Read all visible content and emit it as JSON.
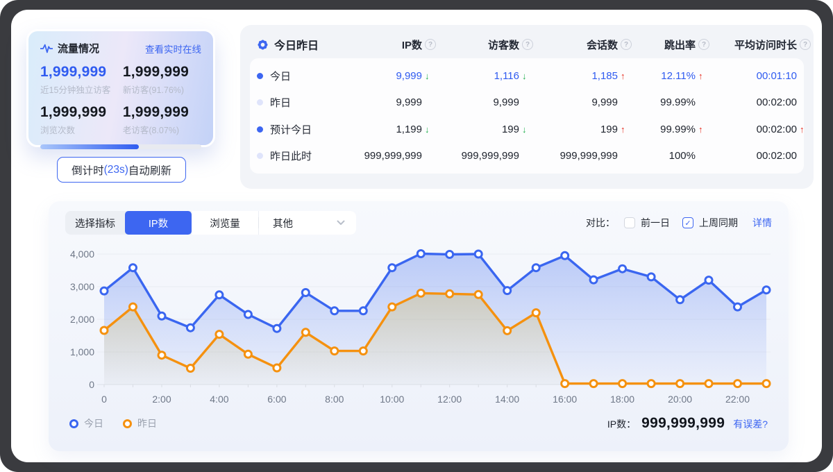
{
  "colors": {
    "accent_blue": "#3d66f1",
    "up_red": "#e5281b",
    "down_green": "#1fae4d",
    "series_today": "#3a66f0",
    "series_yesterday": "#f5910f"
  },
  "traffic_card": {
    "title": "流量情况",
    "link": "查看实时在线",
    "stats": [
      {
        "value": "1,999,999",
        "label": "近15分钟独立访客",
        "highlight": true
      },
      {
        "value": "1,999,999",
        "label": "新访客(91.76%)",
        "highlight": false
      },
      {
        "value": "1,999,999",
        "label": "浏览次数",
        "highlight": false
      },
      {
        "value": "1,999,999",
        "label": "老访客(8.07%)",
        "highlight": false
      }
    ],
    "progress_percent": 61
  },
  "countdown": {
    "prefix": "倒计时",
    "seconds": "(23s)",
    "suffix": "自动刷新"
  },
  "summary_table": {
    "title": "今日昨日",
    "columns": [
      "IP数",
      "访客数",
      "会话数",
      "跳出率",
      "平均访问时长"
    ],
    "rows": [
      {
        "label": "今日",
        "dot": "blue",
        "highlight": true,
        "cells": [
          {
            "value": "9,999",
            "trend": "down"
          },
          {
            "value": "1,116",
            "trend": "down"
          },
          {
            "value": "1,185",
            "trend": "up"
          },
          {
            "value": "12.11%",
            "trend": "up"
          },
          {
            "value": "00:01:10",
            "trend": ""
          }
        ]
      },
      {
        "label": "昨日",
        "dot": "light",
        "highlight": false,
        "cells": [
          {
            "value": "9,999",
            "trend": ""
          },
          {
            "value": "9,999",
            "trend": ""
          },
          {
            "value": "9,999",
            "trend": ""
          },
          {
            "value": "99.99%",
            "trend": ""
          },
          {
            "value": "00:02:00",
            "trend": ""
          }
        ]
      },
      {
        "label": "预计今日",
        "dot": "blue",
        "highlight": false,
        "cells": [
          {
            "value": "1,199",
            "trend": "down"
          },
          {
            "value": "199",
            "trend": "down"
          },
          {
            "value": "199",
            "trend": "up"
          },
          {
            "value": "99.99%",
            "trend": "up"
          },
          {
            "value": "00:02:00",
            "trend": "up"
          }
        ]
      },
      {
        "label": "昨日此时",
        "dot": "light",
        "highlight": false,
        "cells": [
          {
            "value": "999,999,999",
            "trend": ""
          },
          {
            "value": "999,999,999",
            "trend": ""
          },
          {
            "value": "999,999,999",
            "trend": ""
          },
          {
            "value": "100%",
            "trend": ""
          },
          {
            "value": "00:02:00",
            "trend": ""
          }
        ]
      }
    ]
  },
  "chart_panel": {
    "selector_label": "选择指标",
    "tabs": [
      {
        "label": "IP数",
        "active": true,
        "dropdown": false
      },
      {
        "label": "浏览量",
        "active": false,
        "dropdown": false
      },
      {
        "label": "其他",
        "active": false,
        "dropdown": true
      }
    ],
    "compare_label": "对比：",
    "checkboxes": [
      {
        "label": "前一日",
        "checked": false
      },
      {
        "label": "上周同期",
        "checked": true
      }
    ],
    "detail_link": "详情",
    "footer": {
      "metric_label": "IP数：",
      "metric_value": "999,999,999",
      "error_link": "有误差?"
    }
  },
  "chart_data": {
    "type": "line",
    "title": "",
    "x": [
      0,
      1,
      2,
      3,
      4,
      5,
      6,
      7,
      8,
      9,
      10,
      11,
      12,
      13,
      14,
      15,
      16,
      17,
      18,
      19,
      20,
      21,
      22,
      23
    ],
    "x_ticks": [
      {
        "pos": 0,
        "label": "0"
      },
      {
        "pos": 2,
        "label": "2:00"
      },
      {
        "pos": 4,
        "label": "4:00"
      },
      {
        "pos": 6,
        "label": "6:00"
      },
      {
        "pos": 8,
        "label": "8:00"
      },
      {
        "pos": 10,
        "label": "10:00"
      },
      {
        "pos": 12,
        "label": "12:00"
      },
      {
        "pos": 14,
        "label": "14:00"
      },
      {
        "pos": 16,
        "label": "16:00"
      },
      {
        "pos": 18,
        "label": "18:00"
      },
      {
        "pos": 20,
        "label": "20:00"
      },
      {
        "pos": 22,
        "label": "22:00"
      }
    ],
    "ylim": [
      0,
      4000
    ],
    "y_ticks": [
      0,
      1000,
      2000,
      3000,
      4000
    ],
    "y_tick_labels": [
      "0",
      "1,000",
      "2,000",
      "3,000",
      "4,000"
    ],
    "grid": true,
    "legend_position": "bottom-left",
    "series": [
      {
        "name": "今日",
        "color": "#3a66f0",
        "fill": "#4a74ee",
        "values": [
          2870,
          3580,
          2100,
          1740,
          2750,
          2150,
          1720,
          2820,
          2260,
          2260,
          3580,
          4010,
          3990,
          4000,
          2880,
          3580,
          3950,
          3210,
          3550,
          3300,
          2600,
          3200,
          2380,
          2900
        ]
      },
      {
        "name": "昨日",
        "color": "#f5910f",
        "fill": "#d4b855",
        "values": [
          1660,
          2380,
          900,
          500,
          1540,
          930,
          510,
          1600,
          1030,
          1030,
          2380,
          2800,
          2780,
          2760,
          1650,
          2200,
          30,
          30,
          30,
          30,
          30,
          30,
          30,
          30
        ]
      }
    ]
  }
}
